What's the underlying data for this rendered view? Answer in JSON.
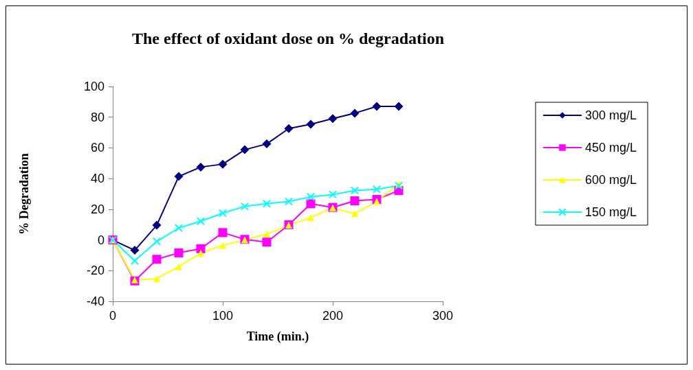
{
  "chart_data": {
    "type": "line",
    "title": "The effect of oxidant dose on % degradation",
    "xlabel": "Time (min.)",
    "ylabel": "% Degradation",
    "x": [
      0,
      20,
      40,
      60,
      80,
      100,
      120,
      140,
      160,
      180,
      200,
      220,
      240,
      260
    ],
    "xlim": [
      0,
      300
    ],
    "xticks": [
      0,
      100,
      200,
      300
    ],
    "ylim": [
      -40,
      100
    ],
    "yticks": [
      -40,
      -20,
      0,
      20,
      40,
      60,
      80,
      100
    ],
    "grid": false,
    "legend": "right",
    "series": [
      {
        "name": "300 mg/L",
        "color": "#000080",
        "marker": "diamond",
        "values": [
          0,
          -6.7,
          9.6,
          41.4,
          47.5,
          49.4,
          58.8,
          62.6,
          72.6,
          75.4,
          79.1,
          82.6,
          87,
          87
        ]
      },
      {
        "name": "450 mg/L",
        "color": "#ff00ff",
        "marker": "square",
        "values": [
          0,
          -26.7,
          -12.6,
          -8.4,
          -5.7,
          4.8,
          0.4,
          -1.4,
          9.9,
          23.6,
          21.2,
          25.5,
          26.4,
          32.2
        ]
      },
      {
        "name": "600 mg/L",
        "color": "#ffff00",
        "marker": "triangle",
        "values": [
          0,
          -26,
          -25.2,
          -17.4,
          -8.6,
          -3.5,
          0,
          3.8,
          9.6,
          14.6,
          20.9,
          17.1,
          25.1,
          36.4
        ]
      },
      {
        "name": "150 mg/L",
        "color": "#00ffff",
        "marker": "cross",
        "values": [
          0,
          -13.6,
          -1,
          7.8,
          12.2,
          17.5,
          21.9,
          23.6,
          25.1,
          28.1,
          29.6,
          32.2,
          33,
          35.4
        ]
      }
    ]
  }
}
